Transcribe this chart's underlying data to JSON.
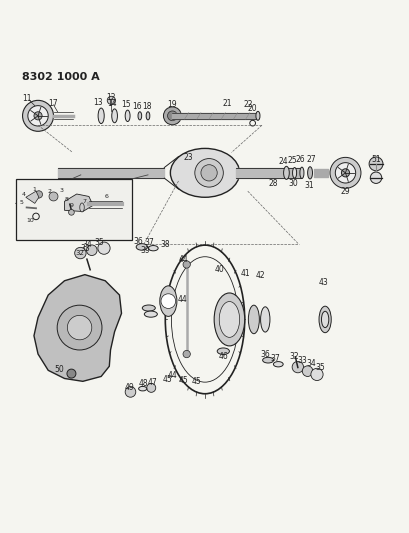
{
  "title": "8302 1000 A",
  "bg_color": "#f5f5f0",
  "line_color": "#222222",
  "figsize": [
    4.1,
    5.33
  ],
  "dpi": 100
}
